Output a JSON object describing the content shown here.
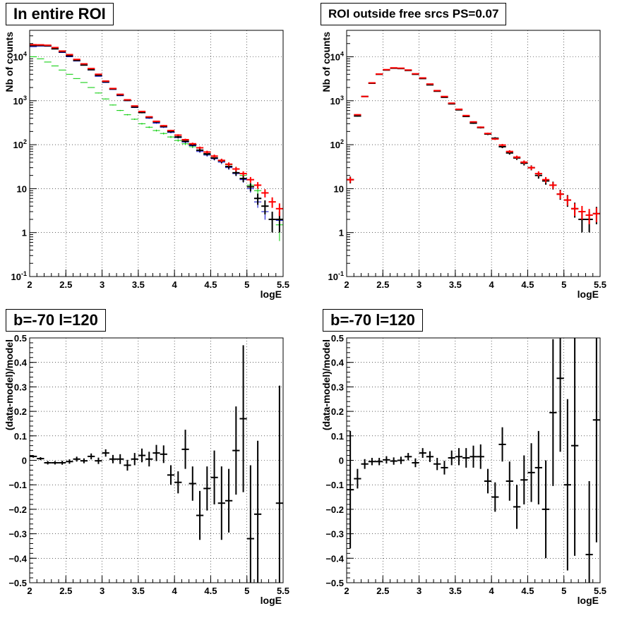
{
  "colors": {
    "data": "#000000",
    "total_model": "#ff0000",
    "component_blue": "#0000cc",
    "component_green": "#00cc00",
    "grid": "#000000"
  },
  "panels": [
    {
      "title": "In entire ROI",
      "chart_data": {
        "type": "scatter",
        "xlabel": "logE",
        "ylabel": "Nb of counts",
        "xlim": [
          2,
          5.5
        ],
        "ylim": [
          0.1,
          40000
        ],
        "yscale": "log",
        "grid": true,
        "xticks": [
          "2",
          "2.5",
          "3",
          "3.5",
          "4",
          "4.5",
          "5",
          "5.5"
        ],
        "yticks": [
          {
            "v": 0.1,
            "base": "10",
            "exp": "-1"
          },
          {
            "v": 1,
            "label": "1"
          },
          {
            "v": 10,
            "label": "10"
          },
          {
            "v": 100,
            "base": "10",
            "exp": "2"
          },
          {
            "v": 1000,
            "base": "10",
            "exp": "3"
          },
          {
            "v": 10000,
            "base": "10",
            "exp": "4"
          }
        ],
        "x": [
          2.05,
          2.15,
          2.25,
          2.35,
          2.45,
          2.55,
          2.65,
          2.75,
          2.85,
          2.95,
          3.05,
          3.15,
          3.25,
          3.35,
          3.45,
          3.55,
          3.65,
          3.75,
          3.85,
          3.95,
          4.05,
          4.15,
          4.25,
          4.35,
          4.45,
          4.55,
          4.65,
          4.75,
          4.85,
          4.95,
          5.05,
          5.15,
          5.25,
          5.35,
          5.45
        ],
        "series": [
          {
            "style": "green",
            "values": [
              10000,
              9000,
              7600,
              6200,
              5000,
              4000,
              3200,
              2600,
              2000,
              1500,
              1100,
              800,
              600,
              480,
              380,
              300,
              250,
              210,
              180,
              150,
              125,
              105,
              90,
              75,
              60,
              50,
              42,
              35,
              28,
              20,
              12,
              9,
              4,
              2,
              1.5
            ],
            "err": 0.35
          },
          {
            "style": "blue",
            "values": [
              17000,
              17500,
              17300,
              15000,
              12500,
              10000,
              8000,
              6400,
              5000,
              3600,
              2600,
              1800,
              1300,
              1000,
              700,
              530,
              400,
              310,
              250,
              190,
              145,
              115,
              95,
              70,
              58,
              48,
              40,
              30,
              22,
              16,
              10,
              5,
              3,
              2,
              1.9
            ],
            "err": 0.3
          },
          {
            "style": "black",
            "values": [
              18000,
              18200,
              17800,
              15200,
              13000,
              10500,
              8300,
              6500,
              5100,
              3800,
              2700,
              1850,
              1350,
              1020,
              720,
              540,
              420,
              330,
              260,
              200,
              150,
              120,
              100,
              75,
              62,
              50,
              43,
              32,
              23,
              17,
              11,
              6,
              4,
              2,
              2
            ],
            "err": 0.35
          },
          {
            "style": "red",
            "values": [
              18800,
              18700,
              18300,
              16200,
              13500,
              11200,
              8700,
              6900,
              5400,
              4000,
              2800,
              1900,
              1400,
              1050,
              760,
              570,
              430,
              340,
              270,
              210,
              165,
              130,
              105,
              85,
              68,
              55,
              44,
              36,
              28,
              22,
              16,
              12,
              8,
              5,
              3.5
            ],
            "err": 0.3
          }
        ]
      }
    },
    {
      "title": "ROI outside free srcs PS=0.07",
      "chart_data": {
        "type": "scatter",
        "xlabel": "logE",
        "ylabel": "Nb of counts",
        "xlim": [
          2,
          5.5
        ],
        "ylim": [
          0.1,
          40000
        ],
        "yscale": "log",
        "grid": true,
        "xticks": [
          "2",
          "2.5",
          "3",
          "3.5",
          "4",
          "4.5",
          "5",
          "5.5"
        ],
        "yticks": [
          {
            "v": 0.1,
            "base": "10",
            "exp": "-1"
          },
          {
            "v": 1,
            "label": "1"
          },
          {
            "v": 10,
            "label": "10"
          },
          {
            "v": 100,
            "base": "10",
            "exp": "2"
          },
          {
            "v": 1000,
            "base": "10",
            "exp": "3"
          },
          {
            "v": 10000,
            "base": "10",
            "exp": "4"
          }
        ],
        "x": [
          2.05,
          2.15,
          2.25,
          2.35,
          2.45,
          2.55,
          2.65,
          2.75,
          2.85,
          2.95,
          3.05,
          3.15,
          3.25,
          3.35,
          3.45,
          3.55,
          3.65,
          3.75,
          3.85,
          3.95,
          4.05,
          4.15,
          4.25,
          4.35,
          4.45,
          4.55,
          4.65,
          4.75,
          4.85,
          4.95,
          5.05,
          5.15,
          5.25,
          5.35,
          5.45
        ],
        "series": [
          {
            "style": "black",
            "values": [
              16,
              450,
              1250,
              2500,
              4000,
              5000,
              5500,
              5400,
              4900,
              4000,
              3200,
              2300,
              1650,
              1200,
              850,
              620,
              440,
              310,
              245,
              175,
              140,
              90,
              65,
              50,
              38,
              30,
              20,
              15,
              12,
              7.5,
              5.5,
              3.5,
              2,
              2,
              2.7
            ],
            "err": 0.35
          },
          {
            "style": "red",
            "values": [
              16,
              480,
              1250,
              2550,
              4050,
              5100,
              5600,
              5500,
              5000,
              4100,
              3300,
              2400,
              1700,
              1250,
              880,
              640,
              460,
              330,
              250,
              180,
              135,
              98,
              70,
              52,
              40,
              30,
              22,
              16,
              12,
              7.5,
              5.5,
              3.5,
              3,
              2.5,
              2.7
            ],
            "err": 0.3
          }
        ]
      }
    },
    {
      "title": "b=-70 l=120",
      "chart_data": {
        "type": "scatter",
        "xlabel": "logE",
        "ylabel": "(data-model)/model",
        "xlim": [
          2,
          5.5
        ],
        "ylim": [
          -0.5,
          0.5
        ],
        "yscale": "linear",
        "grid": true,
        "xticks": [
          "2",
          "2.5",
          "3",
          "3.5",
          "4",
          "4.5",
          "5",
          "5.5"
        ],
        "yticks": [
          {
            "v": -0.5,
            "label": "−0.5"
          },
          {
            "v": -0.4,
            "label": "−0.4"
          },
          {
            "v": -0.3,
            "label": "−0.3"
          },
          {
            "v": -0.2,
            "label": "−0.2"
          },
          {
            "v": -0.1,
            "label": "−0.1"
          },
          {
            "v": 0,
            "label": "0"
          },
          {
            "v": 0.1,
            "label": "0.1"
          },
          {
            "v": 0.2,
            "label": "0.2"
          },
          {
            "v": 0.3,
            "label": "0.3"
          },
          {
            "v": 0.4,
            "label": "0.4"
          },
          {
            "v": 0.5,
            "label": "0.5"
          }
        ],
        "x": [
          2.05,
          2.15,
          2.25,
          2.35,
          2.45,
          2.55,
          2.65,
          2.75,
          2.85,
          2.95,
          3.05,
          3.15,
          3.25,
          3.35,
          3.45,
          3.55,
          3.65,
          3.75,
          3.85,
          3.95,
          4.05,
          4.15,
          4.25,
          4.35,
          4.45,
          4.55,
          4.65,
          4.75,
          4.85,
          4.95,
          5.05,
          5.15,
          5.45
        ],
        "series": [
          {
            "style": "black",
            "values": [
              0.016,
              0.007,
              -0.01,
              -0.01,
              -0.01,
              -0.005,
              0.005,
              -0.002,
              0.016,
              -0.002,
              0.03,
              0.005,
              0.005,
              -0.02,
              0.005,
              0.02,
              0.005,
              0.03,
              0.025,
              -0.06,
              -0.09,
              0.045,
              -0.095,
              -0.225,
              -0.115,
              -0.07,
              -0.175,
              -0.165,
              0.04,
              0.17,
              -0.32,
              -0.22,
              -0.175
            ],
            "err": [
              0.005,
              0.006,
              0.007,
              0.007,
              0.008,
              0.009,
              0.01,
              0.01,
              0.012,
              0.013,
              0.015,
              0.017,
              0.02,
              0.022,
              0.025,
              0.028,
              0.03,
              0.033,
              0.036,
              0.04,
              0.045,
              0.08,
              0.07,
              0.1,
              0.09,
              0.11,
              0.15,
              0.13,
              0.18,
              0.3,
              0.3,
              0.3,
              0.48
            ]
          }
        ]
      }
    },
    {
      "title": "b=-70 l=120",
      "chart_data": {
        "type": "scatter",
        "xlabel": "logE",
        "ylabel": "(data-model)/model",
        "xlim": [
          2,
          5.5
        ],
        "ylim": [
          -0.5,
          0.5
        ],
        "yscale": "linear",
        "grid": true,
        "xticks": [
          "2",
          "2.5",
          "3",
          "3.5",
          "4",
          "4.5",
          "5",
          "5.5"
        ],
        "yticks": [
          {
            "v": -0.5,
            "label": "−0.5"
          },
          {
            "v": -0.4,
            "label": "−0.4"
          },
          {
            "v": -0.3,
            "label": "−0.3"
          },
          {
            "v": -0.2,
            "label": "−0.2"
          },
          {
            "v": -0.1,
            "label": "−0.1"
          },
          {
            "v": 0,
            "label": "0"
          },
          {
            "v": 0.1,
            "label": "0.1"
          },
          {
            "v": 0.2,
            "label": "0.2"
          },
          {
            "v": 0.3,
            "label": "0.3"
          },
          {
            "v": 0.4,
            "label": "0.4"
          },
          {
            "v": 0.5,
            "label": "0.5"
          }
        ],
        "x": [
          2.05,
          2.15,
          2.25,
          2.35,
          2.45,
          2.55,
          2.65,
          2.75,
          2.85,
          2.95,
          3.05,
          3.15,
          3.25,
          3.35,
          3.45,
          3.55,
          3.65,
          3.75,
          3.85,
          3.95,
          4.05,
          4.15,
          4.25,
          4.35,
          4.45,
          4.55,
          4.65,
          4.75,
          4.85,
          4.95,
          5.05,
          5.15,
          5.35,
          5.45
        ],
        "series": [
          {
            "style": "black",
            "values": [
              -0.12,
              -0.075,
              -0.015,
              -0.005,
              -0.005,
              0.002,
              -0.003,
              0.0,
              0.015,
              -0.01,
              0.03,
              0.015,
              -0.015,
              -0.03,
              0.01,
              0.015,
              0.01,
              0.015,
              0.015,
              -0.085,
              -0.15,
              0.065,
              -0.085,
              -0.19,
              -0.08,
              -0.05,
              -0.03,
              -0.2,
              0.195,
              0.335,
              -0.1,
              0.06,
              -0.385,
              0.165
            ],
            "err": [
              0.24,
              0.04,
              0.02,
              0.015,
              0.015,
              0.015,
              0.015,
              0.015,
              0.015,
              0.018,
              0.02,
              0.022,
              0.025,
              0.028,
              0.03,
              0.035,
              0.04,
              0.045,
              0.05,
              0.05,
              0.06,
              0.07,
              0.08,
              0.09,
              0.1,
              0.12,
              0.15,
              0.2,
              0.3,
              0.3,
              0.35,
              0.45,
              0.3,
              0.5
            ]
          }
        ]
      }
    }
  ]
}
